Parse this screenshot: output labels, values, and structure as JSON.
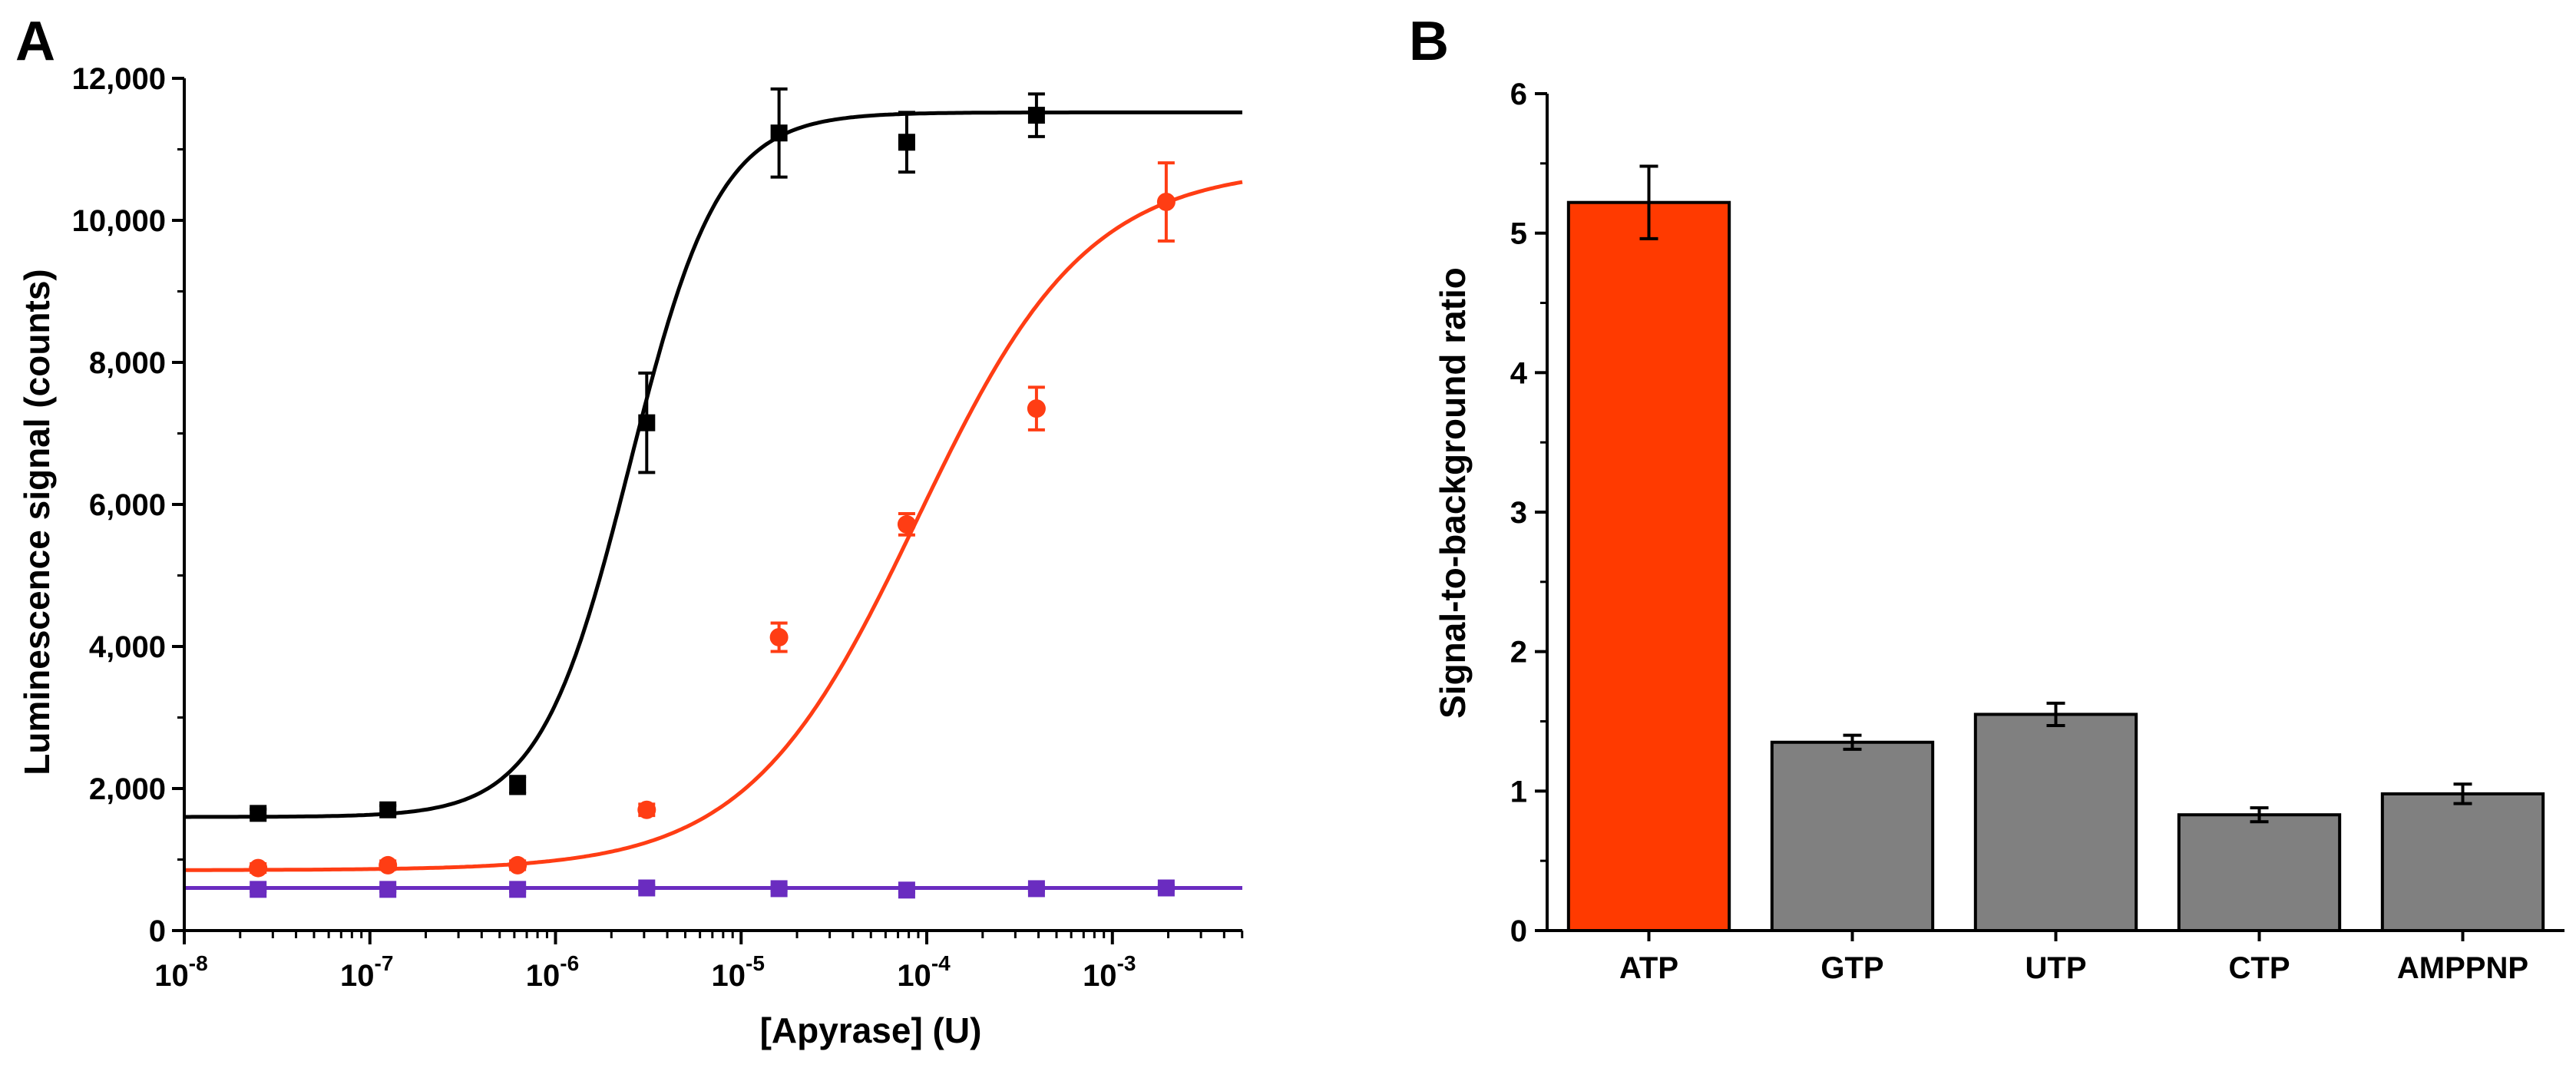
{
  "figure": {
    "background": "#ffffff",
    "panel_a_label": "A",
    "panel_b_label": "B"
  },
  "chart_data": [
    {
      "panel": "A",
      "type": "scatter",
      "title": "",
      "xlabel": "[Apyrase] (U)",
      "ylabel": "Luminescence signal (counts)",
      "xscale": "log",
      "xlim_exponent": [
        -8,
        -2.3
      ],
      "ylim": [
        0,
        12000
      ],
      "x_ticks": [
        {
          "base": "10",
          "exp": "-8",
          "value": -8
        },
        {
          "base": "10",
          "exp": "-7",
          "value": -7
        },
        {
          "base": "10",
          "exp": "-6",
          "value": -6
        },
        {
          "base": "10",
          "exp": "-5",
          "value": -5
        },
        {
          "base": "10",
          "exp": "-4",
          "value": -4
        },
        {
          "base": "10",
          "exp": "-3",
          "value": -3
        }
      ],
      "y_ticks": [
        {
          "label": "0",
          "value": 0
        },
        {
          "label": "2,000",
          "value": 2000
        },
        {
          "label": "4,000",
          "value": 4000
        },
        {
          "label": "6,000",
          "value": 6000
        },
        {
          "label": "8,000",
          "value": 8000
        },
        {
          "label": "10,000",
          "value": 10000
        },
        {
          "label": "12,000",
          "value": 12000
        }
      ],
      "grid": false,
      "series": [
        {
          "name": "black",
          "color": "#000000",
          "marker": "square",
          "x": [
            2.5e-08,
            1.25e-07,
            6.25e-07,
            3.1e-06,
            1.6e-05,
            7.8e-05,
            0.00039
          ],
          "y": [
            1650,
            1700,
            2050,
            7150,
            11230,
            11100,
            11480
          ],
          "err": [
            60,
            60,
            120,
            700,
            620,
            420,
            300
          ],
          "fit": {
            "bottom": 1600,
            "top": 11520,
            "log_ec50": -5.6,
            "hill": 1.8
          }
        },
        {
          "name": "red",
          "color": "#ff3d14",
          "marker": "circle",
          "x": [
            2.5e-08,
            1.25e-07,
            6.25e-07,
            3.1e-06,
            1.6e-05,
            7.8e-05,
            0.00039,
            0.00195
          ],
          "y": [
            880,
            920,
            920,
            1700,
            4130,
            5720,
            7350,
            10260
          ],
          "err": [
            60,
            60,
            60,
            80,
            200,
            150,
            300,
            550
          ],
          "fit": {
            "bottom": 850,
            "top": 10750,
            "log_ec50": -4.05,
            "hill": 0.95
          }
        },
        {
          "name": "purple",
          "color": "#6a2cc0",
          "marker": "square",
          "x": [
            2.5e-08,
            1.25e-07,
            6.25e-07,
            3.1e-06,
            1.6e-05,
            7.8e-05,
            0.00039,
            0.00195
          ],
          "y": [
            580,
            580,
            580,
            600,
            590,
            570,
            590,
            600
          ],
          "err": [
            30,
            30,
            30,
            30,
            30,
            30,
            30,
            30
          ],
          "fit": {
            "bottom": 600,
            "top": 600,
            "log_ec50": -5,
            "hill": 1
          }
        }
      ]
    },
    {
      "panel": "B",
      "type": "bar",
      "title": "",
      "xlabel": "",
      "ylabel": "Signal-to-background ratio",
      "ylim": [
        0,
        6
      ],
      "y_ticks": [
        {
          "label": "0",
          "value": 0
        },
        {
          "label": "1",
          "value": 1
        },
        {
          "label": "2",
          "value": 2
        },
        {
          "label": "3",
          "value": 3
        },
        {
          "label": "4",
          "value": 4
        },
        {
          "label": "5",
          "value": 5
        },
        {
          "label": "6",
          "value": 6
        }
      ],
      "categories": [
        "ATP",
        "GTP",
        "UTP",
        "CTP",
        "AMPPNP"
      ],
      "values": [
        5.22,
        1.35,
        1.55,
        0.83,
        0.98
      ],
      "errors": [
        0.26,
        0.05,
        0.08,
        0.05,
        0.07
      ],
      "colors": [
        "#ff3a00",
        "#808080",
        "#808080",
        "#808080",
        "#808080"
      ],
      "grid": false
    }
  ]
}
